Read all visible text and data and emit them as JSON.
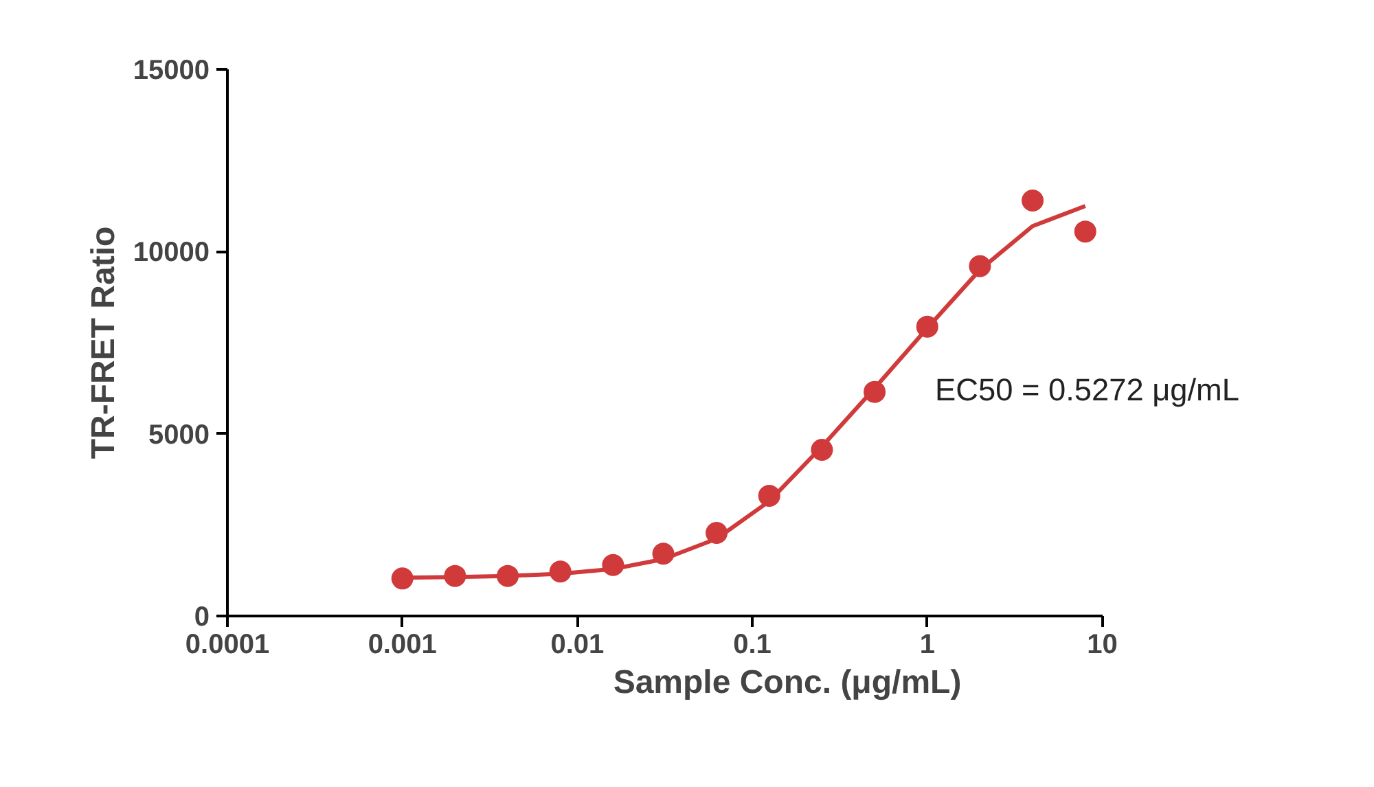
{
  "chart_data": {
    "type": "scatter",
    "xlabel": "Sample Conc. (μg/mL)",
    "ylabel": "TR-FRET Ratio",
    "log": "x",
    "xlim": [
      0.0001,
      10
    ],
    "xticks": [
      0.0001,
      0.001,
      0.01,
      0.1,
      1,
      10
    ],
    "ylim": [
      0,
      15000
    ],
    "yticks": [
      0,
      5000,
      10000,
      15000
    ],
    "grid": false,
    "marker": "circle",
    "annotations": [
      "EC50 = 0.5272 μg/mL"
    ],
    "series": [
      {
        "color": "#d03a3a",
        "x": [
          0.001,
          0.002,
          0.004,
          0.008,
          0.016,
          0.031,
          0.0625,
          0.125,
          0.25,
          0.5,
          1,
          2,
          4,
          8
        ],
        "values": [
          1030,
          1100,
          1100,
          1220,
          1400,
          1710,
          2280,
          3300,
          4560,
          6150,
          7940,
          9600,
          11400,
          10550
        ]
      },
      {
        "type": "line",
        "color": "#d03a3a",
        "marker": "none",
        "line_style": "solid",
        "x": [
          0.001,
          0.002,
          0.004,
          0.008,
          0.016,
          0.031,
          0.0625,
          0.125,
          0.25,
          0.5,
          1,
          2,
          4,
          8
        ],
        "values": [
          1050,
          1070,
          1100,
          1160,
          1290,
          1560,
          2120,
          3150,
          4650,
          6250,
          7900,
          9500,
          10700,
          11250
        ]
      }
    ]
  }
}
